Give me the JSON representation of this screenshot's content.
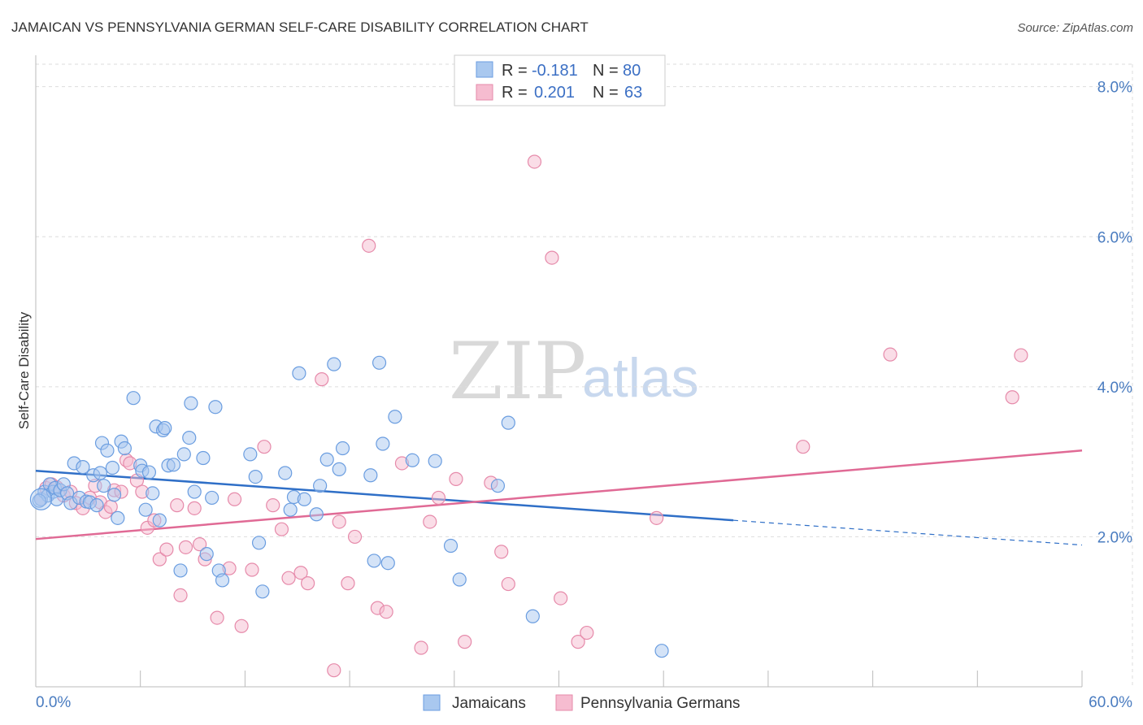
{
  "header": {
    "title": "JAMAICAN VS PENNSYLVANIA GERMAN SELF-CARE DISABILITY CORRELATION CHART",
    "source": "Source: ZipAtlas.com"
  },
  "watermark": {
    "zip": "ZIP",
    "atlas": "atlas"
  },
  "colors": {
    "blue_fill": "#a9c8ef",
    "blue_stroke": "#6a9de0",
    "blue_line": "#2f6fc7",
    "pink_fill": "#f6bcd0",
    "pink_stroke": "#e68aaa",
    "pink_line": "#e06a95",
    "grid": "#dddddd",
    "axis": "#bbbbbb"
  },
  "legend": {
    "row1": {
      "r_label": "R = ",
      "r_value": "-0.181",
      "n_label": "N = ",
      "n_value": "80"
    },
    "row2": {
      "r_label": "R = ",
      "r_value": "0.201",
      "n_label": "N = ",
      "n_value": "63"
    }
  },
  "bottom_legend": [
    "Jamaicans",
    "Pennsylvania Germans"
  ],
  "chart_data": {
    "type": "scatter",
    "title": "JAMAICAN VS PENNSYLVANIA GERMAN SELF-CARE DISABILITY CORRELATION CHART",
    "xlabel": "",
    "ylabel": "Self-Care Disability",
    "xlim": [
      0,
      60
    ],
    "ylim": [
      0,
      8.3
    ],
    "x_tick_labels": [
      "0.0%",
      "60.0%"
    ],
    "y_ticks": [
      2,
      4,
      6,
      8
    ],
    "y_tick_labels": [
      "2.0%",
      "4.0%",
      "6.0%",
      "8.0%"
    ],
    "grid": true,
    "legend_position": "top-center",
    "series": [
      {
        "name": "Jamaicans",
        "color": "#a9c8ef",
        "r": -0.181,
        "n": 80,
        "trend": {
          "x0": 0,
          "y0": 2.88,
          "x1": 40,
          "y1": 2.22,
          "dash_to_x": 60,
          "dash_to_y": 1.89
        },
        "points": [
          [
            0.3,
            2.5
          ],
          [
            0.5,
            2.6
          ],
          [
            0.7,
            2.55
          ],
          [
            0.8,
            2.7
          ],
          [
            1.0,
            2.6
          ],
          [
            1.1,
            2.65
          ],
          [
            1.2,
            2.5
          ],
          [
            1.4,
            2.62
          ],
          [
            1.6,
            2.7
          ],
          [
            1.8,
            2.58
          ],
          [
            2.0,
            2.45
          ],
          [
            2.2,
            2.98
          ],
          [
            2.5,
            2.52
          ],
          [
            2.7,
            2.93
          ],
          [
            2.9,
            2.47
          ],
          [
            3.1,
            2.46
          ],
          [
            3.3,
            2.82
          ],
          [
            3.5,
            2.42
          ],
          [
            3.7,
            2.85
          ],
          [
            3.8,
            3.25
          ],
          [
            3.9,
            2.68
          ],
          [
            4.1,
            3.15
          ],
          [
            4.4,
            2.92
          ],
          [
            4.5,
            2.56
          ],
          [
            4.7,
            2.25
          ],
          [
            4.9,
            3.27
          ],
          [
            5.1,
            3.18
          ],
          [
            5.6,
            3.85
          ],
          [
            6.0,
            2.95
          ],
          [
            6.1,
            2.88
          ],
          [
            6.3,
            2.36
          ],
          [
            6.5,
            2.86
          ],
          [
            6.7,
            2.58
          ],
          [
            6.9,
            3.47
          ],
          [
            7.1,
            2.22
          ],
          [
            7.3,
            3.42
          ],
          [
            7.4,
            3.45
          ],
          [
            7.6,
            2.95
          ],
          [
            7.9,
            2.96
          ],
          [
            8.3,
            1.55
          ],
          [
            8.5,
            3.1
          ],
          [
            8.8,
            3.32
          ],
          [
            8.9,
            3.78
          ],
          [
            9.1,
            2.6
          ],
          [
            9.6,
            3.05
          ],
          [
            9.8,
            1.77
          ],
          [
            10.1,
            2.52
          ],
          [
            10.3,
            3.73
          ],
          [
            10.5,
            1.55
          ],
          [
            10.7,
            1.42
          ],
          [
            12.3,
            3.1
          ],
          [
            12.6,
            2.8
          ],
          [
            12.8,
            1.92
          ],
          [
            13.0,
            1.27
          ],
          [
            14.3,
            2.85
          ],
          [
            14.6,
            2.36
          ],
          [
            14.8,
            2.53
          ],
          [
            15.1,
            4.18
          ],
          [
            15.4,
            2.5
          ],
          [
            16.1,
            2.3
          ],
          [
            16.3,
            2.68
          ],
          [
            16.7,
            3.03
          ],
          [
            17.1,
            4.3
          ],
          [
            17.4,
            2.9
          ],
          [
            17.6,
            3.18
          ],
          [
            19.2,
            2.82
          ],
          [
            19.4,
            1.68
          ],
          [
            19.7,
            4.32
          ],
          [
            19.9,
            3.24
          ],
          [
            20.2,
            1.65
          ],
          [
            20.6,
            3.6
          ],
          [
            21.6,
            3.02
          ],
          [
            22.9,
            3.01
          ],
          [
            23.8,
            1.88
          ],
          [
            24.3,
            1.43
          ],
          [
            26.5,
            2.68
          ],
          [
            27.1,
            3.52
          ],
          [
            28.5,
            0.94
          ],
          [
            35.9,
            0.48
          ],
          [
            0.2,
            2.48
          ]
        ]
      },
      {
        "name": "Pennsylvania Germans",
        "color": "#f6bcd0",
        "r": 0.201,
        "n": 63,
        "trend": {
          "x0": 0,
          "y0": 1.97,
          "x1": 60,
          "y1": 3.15
        },
        "points": [
          [
            0.3,
            2.5
          ],
          [
            0.6,
            2.65
          ],
          [
            0.9,
            2.7
          ],
          [
            1.2,
            2.66
          ],
          [
            1.6,
            2.55
          ],
          [
            2.0,
            2.6
          ],
          [
            2.3,
            2.45
          ],
          [
            2.7,
            2.38
          ],
          [
            3.1,
            2.52
          ],
          [
            3.4,
            2.68
          ],
          [
            3.7,
            2.46
          ],
          [
            4.0,
            2.33
          ],
          [
            4.3,
            2.4
          ],
          [
            4.5,
            2.62
          ],
          [
            4.9,
            2.6
          ],
          [
            5.2,
            3.02
          ],
          [
            5.4,
            2.98
          ],
          [
            5.8,
            2.75
          ],
          [
            6.1,
            2.6
          ],
          [
            6.4,
            2.12
          ],
          [
            6.8,
            2.22
          ],
          [
            7.1,
            1.7
          ],
          [
            7.5,
            1.83
          ],
          [
            8.1,
            2.42
          ],
          [
            8.3,
            1.22
          ],
          [
            8.6,
            1.86
          ],
          [
            9.1,
            2.38
          ],
          [
            9.4,
            1.9
          ],
          [
            9.7,
            1.7
          ],
          [
            10.4,
            0.92
          ],
          [
            11.1,
            1.58
          ],
          [
            11.4,
            2.5
          ],
          [
            11.8,
            0.81
          ],
          [
            12.4,
            1.56
          ],
          [
            13.1,
            3.2
          ],
          [
            13.6,
            2.42
          ],
          [
            14.1,
            2.1
          ],
          [
            14.5,
            1.45
          ],
          [
            15.2,
            1.52
          ],
          [
            15.6,
            1.38
          ],
          [
            16.4,
            4.1
          ],
          [
            17.1,
            0.22
          ],
          [
            17.4,
            2.2
          ],
          [
            17.9,
            1.38
          ],
          [
            18.3,
            2.0
          ],
          [
            19.1,
            5.88
          ],
          [
            19.6,
            1.05
          ],
          [
            20.1,
            1.0
          ],
          [
            21.0,
            2.98
          ],
          [
            22.1,
            0.52
          ],
          [
            22.6,
            2.2
          ],
          [
            23.1,
            2.52
          ],
          [
            24.1,
            2.77
          ],
          [
            24.6,
            0.6
          ],
          [
            26.1,
            2.72
          ],
          [
            26.7,
            1.8
          ],
          [
            27.1,
            1.37
          ],
          [
            28.6,
            7.0
          ],
          [
            29.6,
            5.72
          ],
          [
            30.1,
            1.18
          ],
          [
            31.1,
            0.6
          ],
          [
            31.6,
            0.72
          ],
          [
            35.6,
            2.25
          ]
        ]
      },
      {
        "name": "Pennsylvania Germans (right)",
        "color": "#f6bcd0",
        "points": [
          [
            44.0,
            3.2
          ],
          [
            49.0,
            4.43
          ],
          [
            56.0,
            3.86
          ],
          [
            56.5,
            4.42
          ]
        ]
      }
    ]
  }
}
